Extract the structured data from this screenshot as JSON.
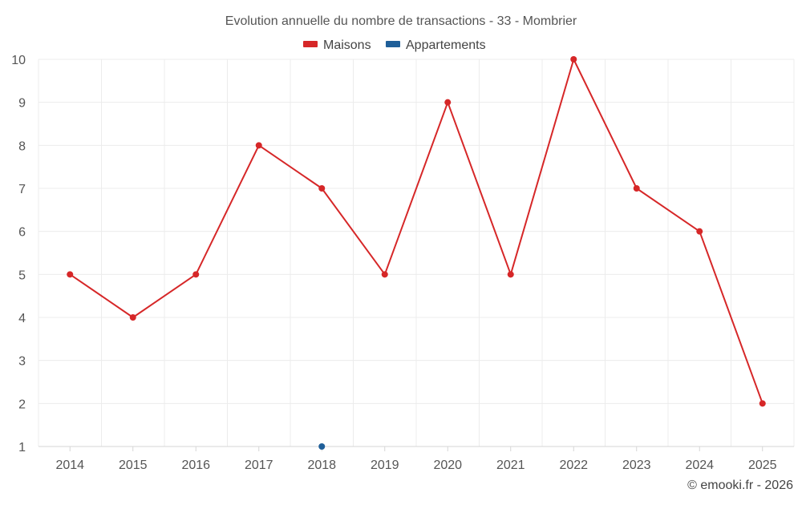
{
  "chart_data": {
    "type": "line",
    "title": "Evolution annuelle du nombre de transactions - 33 - Mombrier",
    "xlabel": "",
    "ylabel": "",
    "categories": [
      "2014",
      "2015",
      "2016",
      "2017",
      "2018",
      "2019",
      "2020",
      "2021",
      "2022",
      "2023",
      "2024",
      "2025"
    ],
    "y_ticks": [
      "1",
      "2",
      "3",
      "4",
      "5",
      "6",
      "7",
      "8",
      "9",
      "10"
    ],
    "ylim": [
      1,
      10
    ],
    "grid": true,
    "legend_position": "top-center",
    "series": [
      {
        "name": "Maisons",
        "color": "#d62728",
        "values": [
          5,
          4,
          5,
          8,
          7,
          5,
          9,
          5,
          10,
          7,
          6,
          2
        ]
      },
      {
        "name": "Appartements",
        "color": "#1f5f99",
        "values": [
          null,
          null,
          null,
          null,
          1,
          null,
          null,
          null,
          null,
          null,
          null,
          null
        ]
      }
    ]
  },
  "credit": "© emooki.fr - 2026"
}
